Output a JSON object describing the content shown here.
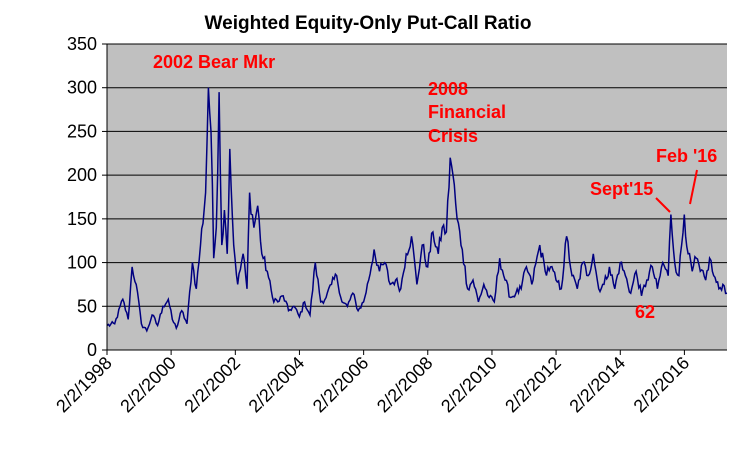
{
  "chart_data": {
    "type": "line",
    "title": "Weighted Equity-Only Put-Call Ratio",
    "xlabel": "",
    "ylabel": "",
    "xlim": [
      "1998-02-02",
      "2017-06-01"
    ],
    "ylim": [
      0,
      350
    ],
    "y_ticks": [
      0,
      50,
      100,
      150,
      200,
      250,
      300,
      350
    ],
    "x_tick_values": [
      "1998-02-02",
      "2000-02-02",
      "2002-02-02",
      "2004-02-02",
      "2006-02-02",
      "2008-02-02",
      "2010-02-02",
      "2012-02-02",
      "2014-02-02",
      "2016-02-02"
    ],
    "x_tick_labels": [
      "2/2/1998",
      "2/2/2000",
      "2/2/2002",
      "2/2/2004",
      "2/2/2006",
      "2/2/2008",
      "2/2/2010",
      "2/2/2012",
      "2/2/2014",
      "2/2/2016"
    ],
    "grid": "horizontal",
    "plot_background": "#c0c0c0",
    "series": [
      {
        "color": "#000080",
        "points": [
          [
            "1998-02-02",
            28
          ],
          [
            "1998-05-01",
            30
          ],
          [
            "1998-08-01",
            58
          ],
          [
            "1998-10-01",
            35
          ],
          [
            "1998-11-15",
            95
          ],
          [
            "1999-01-01",
            75
          ],
          [
            "1999-03-01",
            30
          ],
          [
            "1999-05-01",
            22
          ],
          [
            "1999-07-01",
            40
          ],
          [
            "1999-09-01",
            28
          ],
          [
            "1999-11-01",
            50
          ],
          [
            "2000-01-01",
            58
          ],
          [
            "2000-02-15",
            35
          ],
          [
            "2000-04-01",
            25
          ],
          [
            "2000-06-01",
            45
          ],
          [
            "2000-08-01",
            30
          ],
          [
            "2000-10-01",
            100
          ],
          [
            "2000-11-15",
            70
          ],
          [
            "2001-01-01",
            120
          ],
          [
            "2001-03-01",
            180
          ],
          [
            "2001-04-01",
            300
          ],
          [
            "2001-05-01",
            250
          ],
          [
            "2001-06-01",
            105
          ],
          [
            "2001-07-01",
            140
          ],
          [
            "2001-08-01",
            295
          ],
          [
            "2001-09-01",
            120
          ],
          [
            "2001-10-01",
            160
          ],
          [
            "2001-11-01",
            110
          ],
          [
            "2001-12-01",
            230
          ],
          [
            "2002-01-15",
            120
          ],
          [
            "2002-03-01",
            75
          ],
          [
            "2002-05-01",
            110
          ],
          [
            "2002-06-15",
            70
          ],
          [
            "2002-07-15",
            180
          ],
          [
            "2002-09-01",
            140
          ],
          [
            "2002-10-15",
            165
          ],
          [
            "2002-12-01",
            110
          ],
          [
            "2003-02-01",
            90
          ],
          [
            "2003-04-01",
            60
          ],
          [
            "2003-06-01",
            55
          ],
          [
            "2003-08-01",
            62
          ],
          [
            "2003-10-01",
            45
          ],
          [
            "2003-12-01",
            50
          ],
          [
            "2004-02-01",
            38
          ],
          [
            "2004-04-01",
            55
          ],
          [
            "2004-06-01",
            40
          ],
          [
            "2004-08-01",
            100
          ],
          [
            "2004-10-01",
            55
          ],
          [
            "2004-12-01",
            60
          ],
          [
            "2005-02-01",
            75
          ],
          [
            "2005-04-01",
            85
          ],
          [
            "2005-06-01",
            55
          ],
          [
            "2005-08-01",
            50
          ],
          [
            "2005-10-01",
            65
          ],
          [
            "2005-12-01",
            45
          ],
          [
            "2006-02-01",
            55
          ],
          [
            "2006-04-01",
            80
          ],
          [
            "2006-06-01",
            115
          ],
          [
            "2006-08-01",
            90
          ],
          [
            "2006-10-01",
            100
          ],
          [
            "2006-12-01",
            75
          ],
          [
            "2007-02-01",
            80
          ],
          [
            "2007-04-01",
            70
          ],
          [
            "2007-06-01",
            110
          ],
          [
            "2007-08-01",
            130
          ],
          [
            "2007-10-01",
            75
          ],
          [
            "2007-12-01",
            120
          ],
          [
            "2008-02-01",
            95
          ],
          [
            "2008-04-01",
            135
          ],
          [
            "2008-06-01",
            110
          ],
          [
            "2008-07-15",
            140
          ],
          [
            "2008-09-01",
            135
          ],
          [
            "2008-10-15",
            220
          ],
          [
            "2008-11-15",
            200
          ],
          [
            "2009-01-01",
            150
          ],
          [
            "2009-03-01",
            115
          ],
          [
            "2009-05-01",
            70
          ],
          [
            "2009-07-01",
            80
          ],
          [
            "2009-09-01",
            55
          ],
          [
            "2009-11-01",
            75
          ],
          [
            "2010-01-01",
            60
          ],
          [
            "2010-03-01",
            55
          ],
          [
            "2010-05-01",
            105
          ],
          [
            "2010-07-01",
            80
          ],
          [
            "2010-09-01",
            60
          ],
          [
            "2010-11-01",
            65
          ],
          [
            "2011-01-01",
            70
          ],
          [
            "2011-03-01",
            95
          ],
          [
            "2011-05-01",
            75
          ],
          [
            "2011-08-01",
            120
          ],
          [
            "2011-10-01",
            90
          ],
          [
            "2011-12-01",
            95
          ],
          [
            "2012-02-01",
            80
          ],
          [
            "2012-04-01",
            70
          ],
          [
            "2012-06-01",
            130
          ],
          [
            "2012-08-01",
            85
          ],
          [
            "2012-10-01",
            70
          ],
          [
            "2012-12-01",
            100
          ],
          [
            "2013-02-01",
            85
          ],
          [
            "2013-04-01",
            110
          ],
          [
            "2013-06-01",
            70
          ],
          [
            "2013-08-01",
            75
          ],
          [
            "2013-10-01",
            95
          ],
          [
            "2013-12-01",
            70
          ],
          [
            "2014-02-01",
            100
          ],
          [
            "2014-04-01",
            85
          ],
          [
            "2014-06-01",
            65
          ],
          [
            "2014-08-01",
            90
          ],
          [
            "2014-10-01",
            62
          ],
          [
            "2014-12-01",
            80
          ],
          [
            "2015-02-01",
            95
          ],
          [
            "2015-04-01",
            70
          ],
          [
            "2015-06-01",
            100
          ],
          [
            "2015-08-01",
            85
          ],
          [
            "2015-09-01",
            155
          ],
          [
            "2015-10-15",
            100
          ],
          [
            "2015-12-01",
            85
          ],
          [
            "2016-02-01",
            155
          ],
          [
            "2016-03-15",
            110
          ],
          [
            "2016-05-01",
            90
          ],
          [
            "2016-06-15",
            105
          ],
          [
            "2016-08-01",
            90
          ],
          [
            "2016-10-01",
            80
          ],
          [
            "2016-11-15",
            105
          ],
          [
            "2017-01-01",
            85
          ],
          [
            "2017-03-01",
            70
          ],
          [
            "2017-04-15",
            75
          ],
          [
            "2017-06-01",
            65
          ]
        ]
      }
    ],
    "annotations": [
      {
        "text": "2002 Bear Mkr"
      },
      {
        "text": "2008"
      },
      {
        "text": "Financial"
      },
      {
        "text": "Crisis"
      },
      {
        "text": "Sept'15"
      },
      {
        "text": "Feb '16"
      },
      {
        "text": "62"
      }
    ],
    "annotation_color": "#ff0000"
  }
}
